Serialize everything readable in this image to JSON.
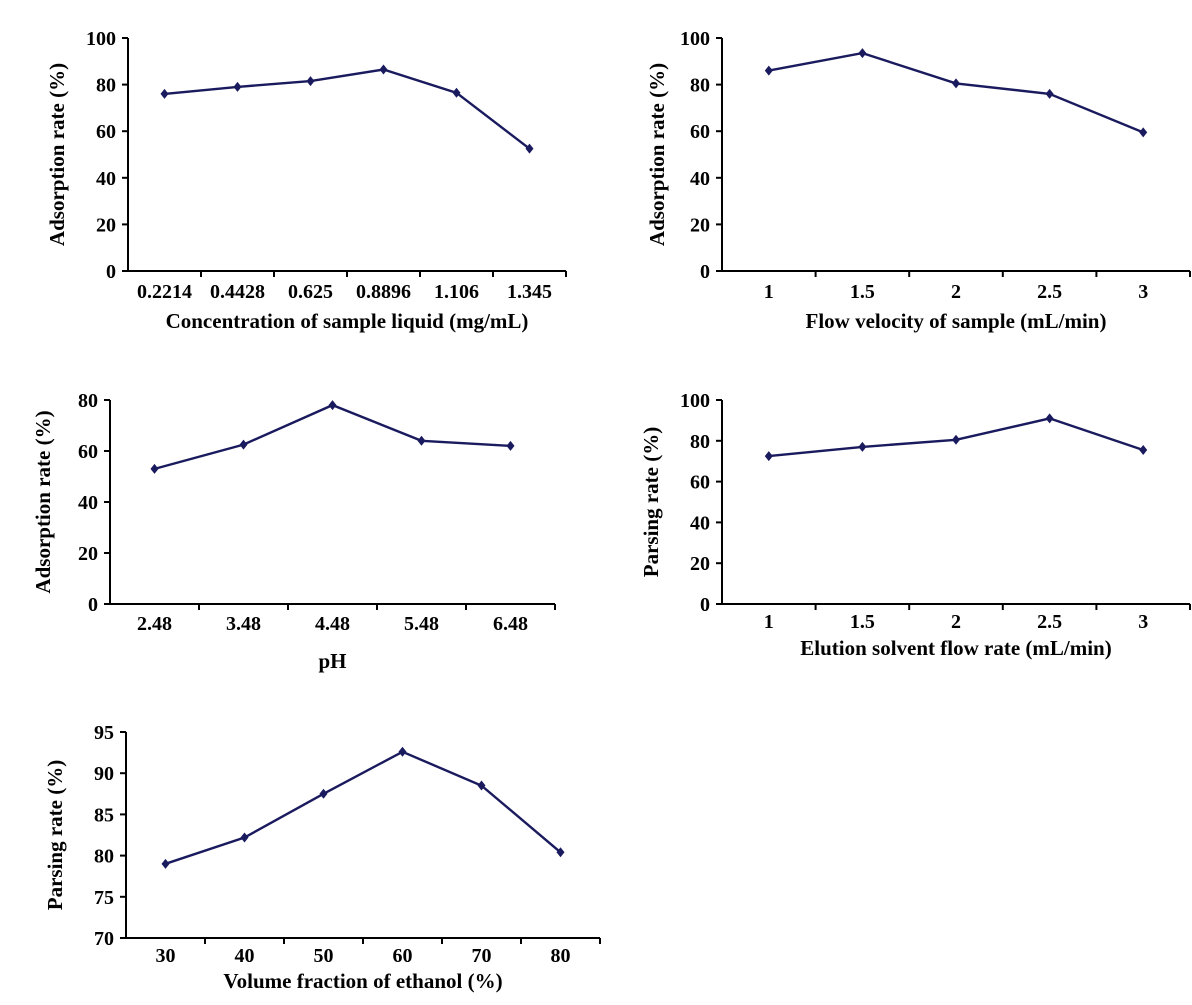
{
  "figure": {
    "series_color": "#1a1a5e"
  },
  "chart_data": [
    {
      "type": "line",
      "categories": [
        "0.2214",
        "0.4428",
        "0.625",
        "0.8896",
        "1.106",
        "1.345"
      ],
      "series": [
        {
          "values": [
            76,
            79,
            81.5,
            86.5,
            76.5,
            52.5
          ]
        }
      ],
      "xlabel": "Concentration of sample liquid (mg/mL)",
      "ylabel": "Adsorption rate (%)",
      "ylim": [
        0,
        100
      ],
      "yticks": [
        "0",
        "20",
        "40",
        "60",
        "80",
        "100"
      ],
      "grid": false
    },
    {
      "type": "line",
      "categories": [
        "1",
        "1.5",
        "2",
        "2.5",
        "3"
      ],
      "series": [
        {
          "values": [
            86,
            93.5,
            80.5,
            76,
            59.5
          ]
        }
      ],
      "xlabel": "Flow velocity of sample (mL/min)",
      "ylabel": "Adsorption rate (%)",
      "ylim": [
        0,
        100
      ],
      "yticks": [
        "0",
        "20",
        "40",
        "60",
        "80",
        "100"
      ],
      "grid": false
    },
    {
      "type": "line",
      "categories": [
        "2.48",
        "3.48",
        "4.48",
        "5.48",
        "6.48"
      ],
      "series": [
        {
          "values": [
            53,
            62.5,
            78,
            64,
            62
          ]
        }
      ],
      "xlabel": "pH",
      "ylabel": "Adsorption rate (%)",
      "ylim": [
        0,
        80
      ],
      "yticks": [
        "0",
        "20",
        "40",
        "60",
        "80"
      ],
      "grid": false
    },
    {
      "type": "line",
      "categories": [
        "1",
        "1.5",
        "2",
        "2.5",
        "3"
      ],
      "series": [
        {
          "values": [
            72.5,
            77,
            80.5,
            91,
            75.5
          ]
        }
      ],
      "xlabel": "Elution solvent flow rate (mL/min)",
      "ylabel": "Parsing rate (%)",
      "ylim": [
        0,
        100
      ],
      "yticks": [
        "0",
        "20",
        "40",
        "60",
        "80",
        "100"
      ],
      "grid": false
    },
    {
      "type": "line",
      "categories": [
        "30",
        "40",
        "50",
        "60",
        "70",
        "80"
      ],
      "series": [
        {
          "values": [
            79,
            82.2,
            87.5,
            92.6,
            88.5,
            80.4
          ]
        }
      ],
      "xlabel": "Volume fraction of ethanol (%)",
      "ylabel": "Parsing rate (%)",
      "ylim": [
        70,
        95
      ],
      "yticks": [
        "70",
        "75",
        "80",
        "85",
        "90",
        "95"
      ],
      "grid": false
    }
  ]
}
